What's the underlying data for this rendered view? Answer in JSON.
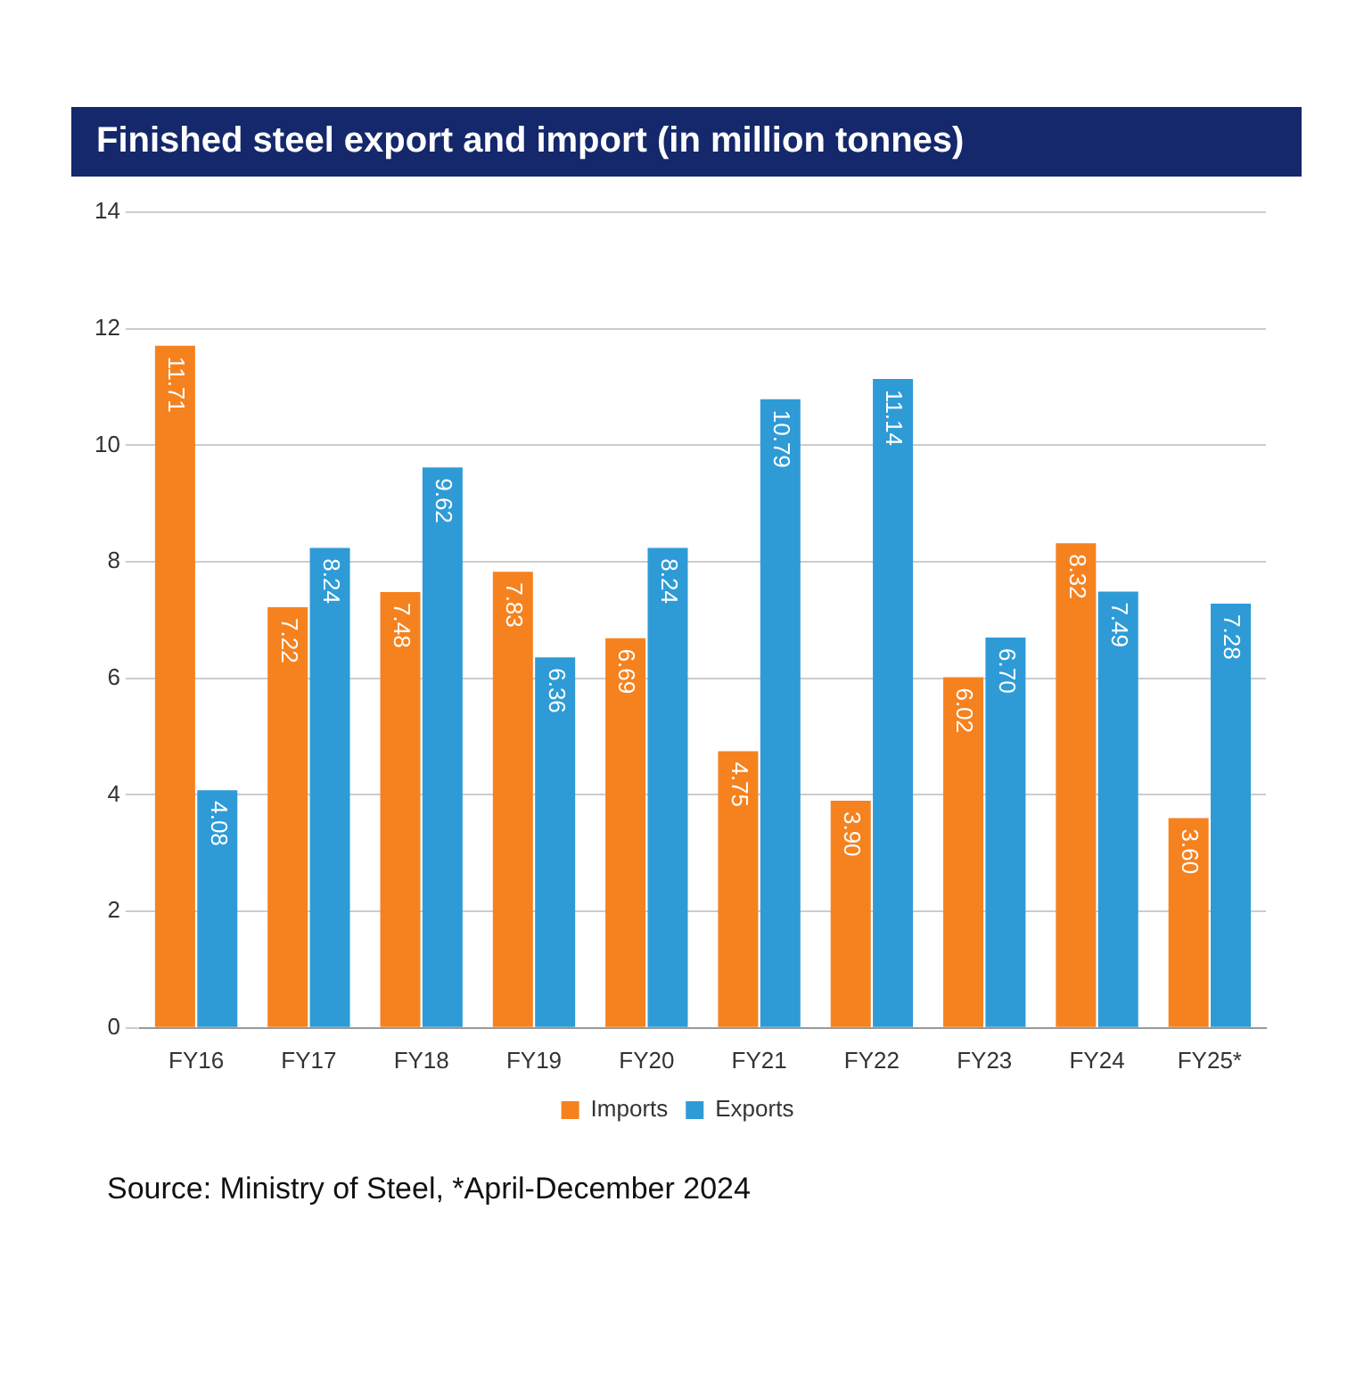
{
  "chart_data": {
    "type": "bar",
    "title": "Finished steel export and import (in million tonnes)",
    "categories": [
      "FY16",
      "FY17",
      "FY18",
      "FY19",
      "FY20",
      "FY21",
      "FY22",
      "FY23",
      "FY24",
      "FY25*"
    ],
    "series": [
      {
        "name": "Imports",
        "color": "#f5821f",
        "values": [
          11.71,
          7.22,
          7.48,
          7.83,
          6.69,
          4.75,
          3.9,
          6.02,
          8.32,
          3.6
        ],
        "value_labels": [
          "11.71",
          "7.22",
          "7.48",
          "7.83",
          "6.69",
          "4.75",
          "3.90",
          "6.02",
          "8.32",
          "3.60"
        ]
      },
      {
        "name": "Exports",
        "color": "#2e9bd6",
        "values": [
          4.08,
          8.24,
          9.62,
          6.36,
          8.24,
          10.79,
          11.14,
          6.7,
          7.49,
          7.28
        ],
        "value_labels": [
          "4.08",
          "8.24",
          "9.62",
          "6.36",
          "8.24",
          "10.79",
          "11.14",
          "6.70",
          "7.49",
          "7.28"
        ]
      }
    ],
    "ylim": [
      0,
      14
    ],
    "yticks": [
      0,
      2,
      4,
      6,
      8,
      10,
      12,
      14
    ],
    "grid": "y",
    "legend": "bottom",
    "annotations": [
      "Source: Ministry of Steel, *April-December 2024"
    ]
  }
}
